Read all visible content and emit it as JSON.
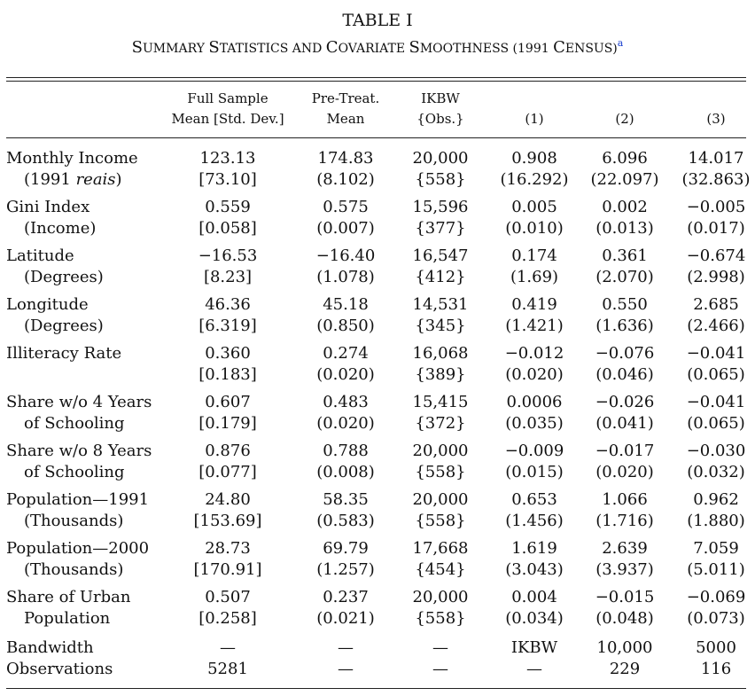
{
  "title": "TABLE I",
  "subtitle": {
    "parts": [
      "S",
      "UMMARY ",
      "S",
      "TATISTICS AND ",
      "C",
      "OVARIATE ",
      "S",
      "MOOTHNESS (1991 ",
      "C",
      "ENSUS)"
    ],
    "note": "a"
  },
  "header": {
    "full_sample_1": "Full Sample",
    "full_sample_2": "Mean [Std. Dev.]",
    "pretreat_1": "Pre-Treat.",
    "pretreat_2": "Mean",
    "ikbw_1": "IKBW",
    "ikbw_2": "{Obs.}",
    "col1": "(1)",
    "col2": "(2)",
    "col3": "(3)"
  },
  "rows": [
    {
      "label1": "Monthly Income",
      "label2a": "(1991 ",
      "label2b": "reais",
      "label2c": ")",
      "fs": "123.13",
      "fs_sd": "[73.10]",
      "pt": "174.83",
      "pt_se": "(8.102)",
      "ik": "20,000",
      "ik_obs": "{558}",
      "c1": "0.908",
      "c1_se": "(16.292)",
      "c2": "6.096",
      "c2_se": "(22.097)",
      "c3": "14.017",
      "c3_se": "(32.863)"
    },
    {
      "label1": "Gini Index",
      "label2a": "(Income)",
      "label2b": "",
      "label2c": "",
      "fs": "0.559",
      "fs_sd": "[0.058]",
      "pt": "0.575",
      "pt_se": "(0.007)",
      "ik": "15,596",
      "ik_obs": "{377}",
      "c1": "0.005",
      "c1_se": "(0.010)",
      "c2": "0.002",
      "c2_se": "(0.013)",
      "c3": "−0.005",
      "c3_se": "(0.017)"
    },
    {
      "label1": "Latitude",
      "label2a": "(Degrees)",
      "label2b": "",
      "label2c": "",
      "fs": "−16.53",
      "fs_sd": "[8.23]",
      "pt": "−16.40",
      "pt_se": "(1.078)",
      "ik": "16,547",
      "ik_obs": "{412}",
      "c1": "0.174",
      "c1_se": "(1.69)",
      "c2": "0.361",
      "c2_se": "(2.070)",
      "c3": "−0.674",
      "c3_se": "(2.998)"
    },
    {
      "label1": "Longitude",
      "label2a": "(Degrees)",
      "label2b": "",
      "label2c": "",
      "fs": "46.36",
      "fs_sd": "[6.319]",
      "pt": "45.18",
      "pt_se": "(0.850)",
      "ik": "14,531",
      "ik_obs": "{345}",
      "c1": "0.419",
      "c1_se": "(1.421)",
      "c2": "0.550",
      "c2_se": "(1.636)",
      "c3": "2.685",
      "c3_se": "(2.466)"
    },
    {
      "label1": "Illiteracy Rate",
      "label2a": "",
      "label2b": "",
      "label2c": "",
      "fs": "0.360",
      "fs_sd": "[0.183]",
      "pt": "0.274",
      "pt_se": "(0.020)",
      "ik": "16,068",
      "ik_obs": "{389}",
      "c1": "−0.012",
      "c1_se": "(0.020)",
      "c2": "−0.076",
      "c2_se": "(0.046)",
      "c3": "−0.041",
      "c3_se": "(0.065)"
    },
    {
      "label1": "Share w/o 4 Years",
      "label2a": "of Schooling",
      "label2b": "",
      "label2c": "",
      "fs": "0.607",
      "fs_sd": "[0.179]",
      "pt": "0.483",
      "pt_se": "(0.020)",
      "ik": "15,415",
      "ik_obs": "{372}",
      "c1": "0.0006",
      "c1_se": "(0.035)",
      "c2": "−0.026",
      "c2_se": "(0.041)",
      "c3": "−0.041",
      "c3_se": "(0.065)"
    },
    {
      "label1": "Share w/o 8 Years",
      "label2a": "of Schooling",
      "label2b": "",
      "label2c": "",
      "fs": "0.876",
      "fs_sd": "[0.077]",
      "pt": "0.788",
      "pt_se": "(0.008)",
      "ik": "20,000",
      "ik_obs": "{558}",
      "c1": "−0.009",
      "c1_se": "(0.015)",
      "c2": "−0.017",
      "c2_se": "(0.020)",
      "c3": "−0.030",
      "c3_se": "(0.032)"
    },
    {
      "label1": "Population—1991",
      "label2a": "(Thousands)",
      "label2b": "",
      "label2c": "",
      "fs": "24.80",
      "fs_sd": "[153.69]",
      "pt": "58.35",
      "pt_se": "(0.583)",
      "ik": "20,000",
      "ik_obs": "{558}",
      "c1": "0.653",
      "c1_se": "(1.456)",
      "c2": "1.066",
      "c2_se": "(1.716)",
      "c3": "0.962",
      "c3_se": "(1.880)"
    },
    {
      "label1": "Population—2000",
      "label2a": "(Thousands)",
      "label2b": "",
      "label2c": "",
      "fs": "28.73",
      "fs_sd": "[170.91]",
      "pt": "69.79",
      "pt_se": "(1.257)",
      "ik": "17,668",
      "ik_obs": "{454}",
      "c1": "1.619",
      "c1_se": "(3.043)",
      "c2": "2.639",
      "c2_se": "(3.937)",
      "c3": "7.059",
      "c3_se": "(5.011)"
    },
    {
      "label1": "Share of Urban",
      "label2a": "Population",
      "label2b": "",
      "label2c": "",
      "fs": "0.507",
      "fs_sd": "[0.258]",
      "pt": "0.237",
      "pt_se": "(0.021)",
      "ik": "20,000",
      "ik_obs": "{558}",
      "c1": "0.004",
      "c1_se": "(0.034)",
      "c2": "−0.015",
      "c2_se": "(0.048)",
      "c3": "−0.069",
      "c3_se": "(0.073)"
    }
  ],
  "footer": [
    {
      "label": "Bandwidth",
      "fs": "—",
      "pt": "—",
      "ik": "—",
      "c1": "IKBW",
      "c2": "10,000",
      "c3": "5000"
    },
    {
      "label": "Observations",
      "fs": "5281",
      "pt": "—",
      "ik": "—",
      "c1": "—",
      "c2": "229",
      "c3": "116"
    }
  ]
}
